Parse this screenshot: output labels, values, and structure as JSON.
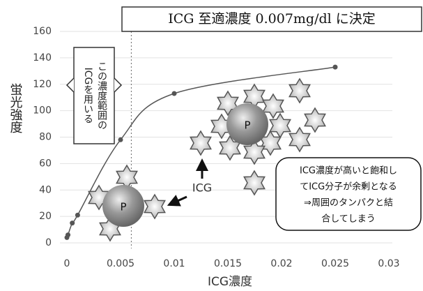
{
  "chart_data": {
    "type": "line",
    "title": "ICG 至適濃度  0.007mg/dl に決定",
    "y_label": "蛍光強度",
    "x_label": "ICG濃度",
    "x": [
      0,
      0.0001,
      0.0005,
      0.001,
      0.005,
      0.01,
      0.025
    ],
    "values": [
      4,
      6,
      15,
      21,
      78,
      113,
      133
    ],
    "color": "#555555",
    "xlim": [
      0,
      0.03
    ],
    "xticks": [
      0,
      0.005,
      0.01,
      0.015,
      0.02,
      0.025,
      0.03
    ],
    "ylim": [
      0,
      160
    ],
    "yticks": [
      0,
      20,
      40,
      60,
      80,
      100,
      120,
      140,
      160
    ],
    "grid": true,
    "reference_x": 0.006,
    "range_box": [
      "この濃度範囲の",
      "ICGを用いる"
    ],
    "molecule_label": "ICG",
    "protein_label": [
      "P",
      "P"
    ],
    "callout": [
      "ICG濃度が高いと飽和し",
      "てICG分子が余剰となる",
      "⇒周囲のタンパクと結",
      "合してしまう"
    ]
  }
}
